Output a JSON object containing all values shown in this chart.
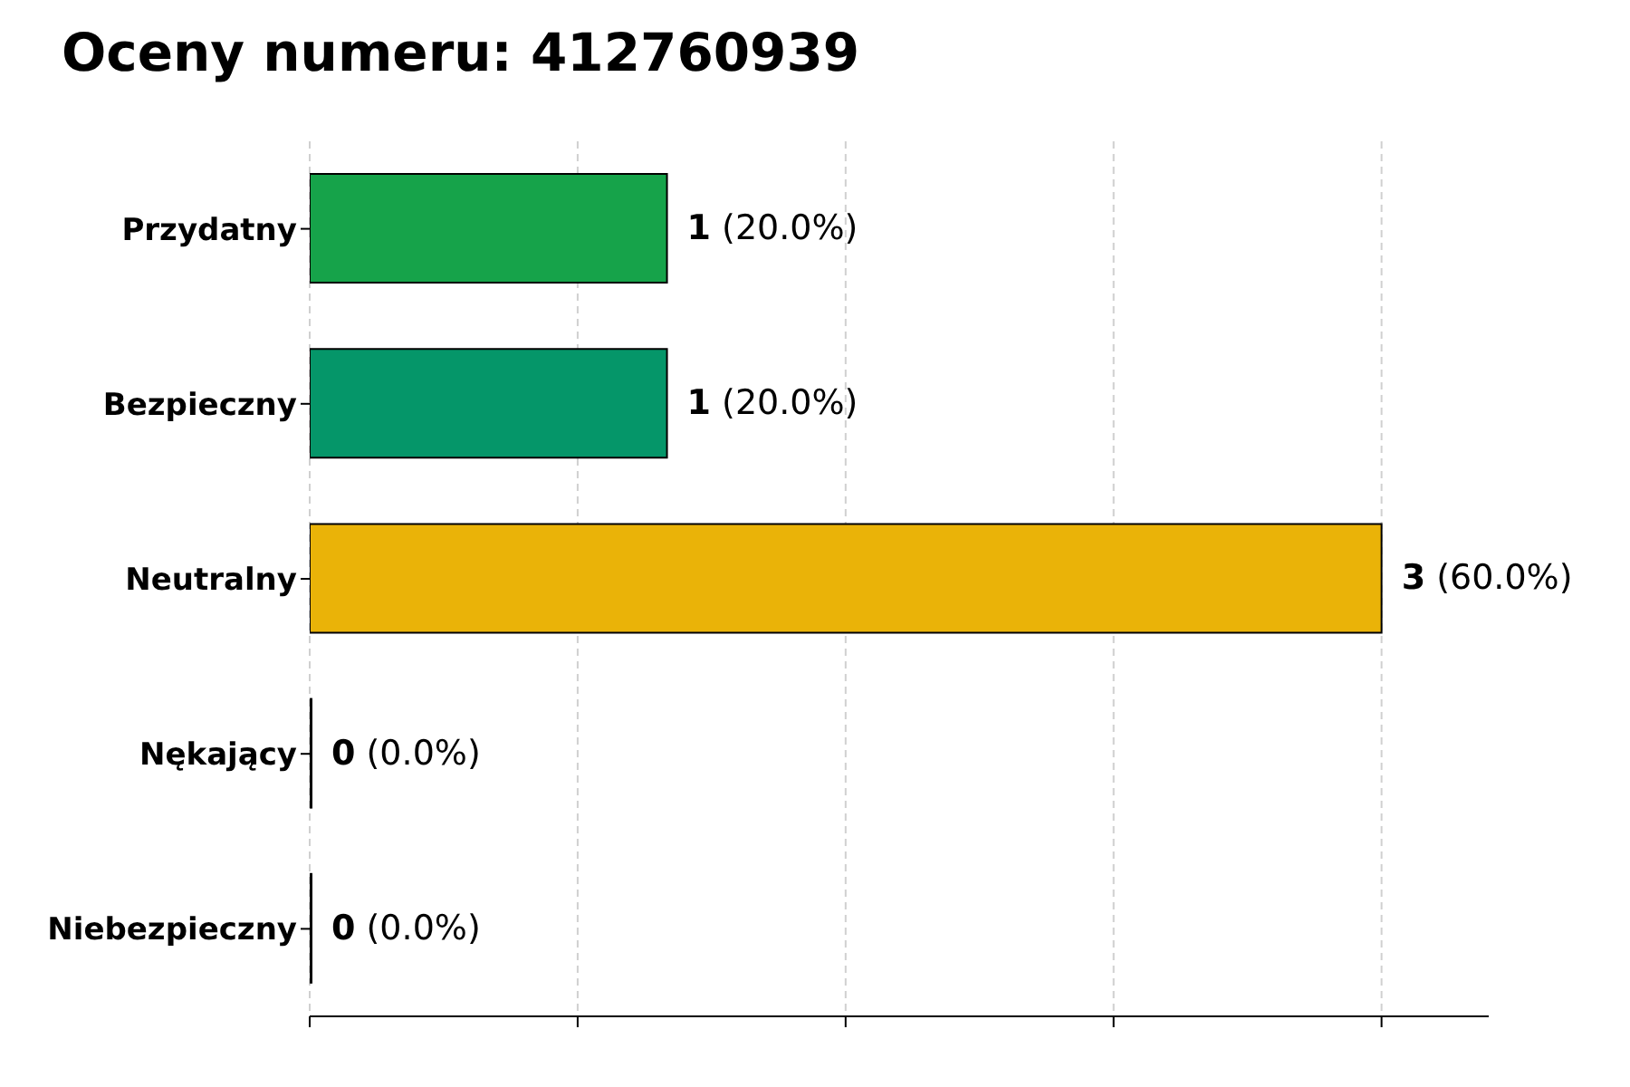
{
  "chart_data": {
    "type": "bar",
    "orientation": "horizontal",
    "title": "Oceny numeru: 412760939",
    "categories": [
      "Przydatny",
      "Bezpieczny",
      "Neutralny",
      "Nękający",
      "Niebezpieczny"
    ],
    "values": [
      1,
      1,
      3,
      0,
      0
    ],
    "colors": [
      "#16a34a",
      "#059669",
      "#eab308",
      "#dc2626",
      "#b91c1c"
    ],
    "value_labels": [
      "1 (20.0%)",
      "1 (20.0%)",
      "3 (60.0%)",
      "0 (0.0%)",
      "0 (0.0%)"
    ],
    "xlim": [
      0,
      3.3
    ],
    "xticks": [
      {
        "value": 0,
        "label": null
      },
      {
        "value": 0.75,
        "label": null
      },
      {
        "value": 1.5,
        "label": null
      },
      {
        "value": 2.25,
        "label": null
      },
      {
        "value": 3,
        "label": null
      }
    ],
    "tick_labels": "y",
    "grid": "x"
  }
}
